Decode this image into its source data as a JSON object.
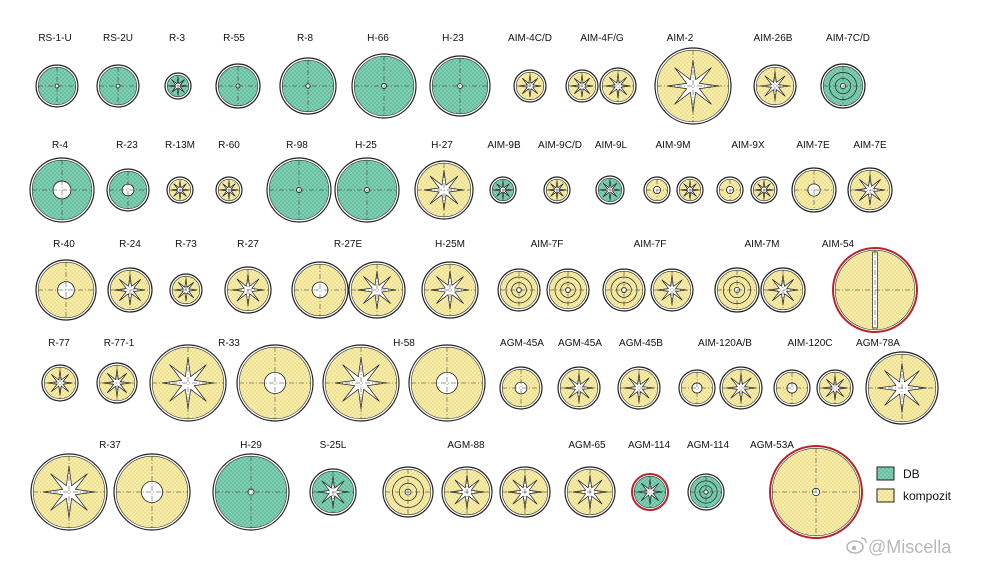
{
  "colors": {
    "db": "#7fcfb2",
    "db_dot": "#4fa98a",
    "kompozit": "#f7eca8",
    "kompozit_dot": "#d9c76a",
    "outline": "#222222",
    "case_red": "#b3262c",
    "watermark": "#b8b8b8"
  },
  "legend": {
    "db_label": "DB",
    "kompozit_label": "kompozit"
  },
  "watermark": {
    "text": "@Miscella",
    "icon": "weibo-icon"
  },
  "rows": [
    {
      "labels": [
        "RS-1-U",
        "RS-2U",
        "R-3",
        "R-55",
        "R-8",
        "H-66",
        "H-23",
        "AIM-4C/D",
        "AIM-4F/G",
        "AIM-2",
        "AIM-26B",
        "AIM-7C/D"
      ],
      "grains": [
        {
          "label": "RS-1-U",
          "material": "db",
          "core": "dot"
        },
        {
          "label": "RS-2U",
          "material": "db",
          "core": "dot"
        },
        {
          "label": "R-3",
          "material": "db",
          "core": "star"
        },
        {
          "label": "R-55",
          "material": "db",
          "core": "dot"
        },
        {
          "label": "R-8",
          "material": "db",
          "core": "dot"
        },
        {
          "label": "H-66",
          "material": "db",
          "core": "dot"
        },
        {
          "label": "H-23",
          "material": "db",
          "core": "dot"
        },
        {
          "label": "AIM-4C/D",
          "material": "kompozit",
          "core": "star"
        },
        {
          "label": "AIM-4F/G",
          "material": "kompozit",
          "core": "star"
        },
        {
          "label": "AIM-4F/G",
          "material": "kompozit",
          "core": "star"
        },
        {
          "label": "AIM-2",
          "material": "kompozit",
          "core": "star"
        },
        {
          "label": "AIM-26B",
          "material": "kompozit",
          "core": "star"
        },
        {
          "label": "AIM-7C/D",
          "material": "db",
          "core": "rings"
        }
      ]
    },
    {
      "labels": [
        "R-4",
        "R-23",
        "R-13M",
        "R-60",
        "R-98",
        "H-25",
        "H-27",
        "AIM-9B",
        "AIM-9C/D",
        "AIM-9L",
        "AIM-9M",
        "AIM-9X",
        "AIM-7E",
        "AIM-7E"
      ],
      "grains": [
        {
          "label": "R-4",
          "material": "db",
          "core": "hole"
        },
        {
          "label": "R-23",
          "material": "db",
          "core": "hole"
        },
        {
          "label": "R-13M",
          "material": "kompozit",
          "core": "star"
        },
        {
          "label": "R-60",
          "material": "kompozit",
          "core": "star"
        },
        {
          "label": "R-98",
          "material": "db",
          "core": "dot"
        },
        {
          "label": "H-25",
          "material": "db",
          "core": "dot"
        },
        {
          "label": "H-27",
          "material": "kompozit",
          "core": "star"
        },
        {
          "label": "AIM-9B",
          "material": "db",
          "core": "star"
        },
        {
          "label": "AIM-9C/D",
          "material": "kompozit",
          "core": "star"
        },
        {
          "label": "AIM-9L",
          "material": "db",
          "core": "star"
        },
        {
          "label": "AIM-9M",
          "material": "kompozit",
          "core": "hole"
        },
        {
          "label": "AIM-9M",
          "material": "kompozit",
          "core": "star"
        },
        {
          "label": "AIM-9X",
          "material": "kompozit",
          "core": "hole"
        },
        {
          "label": "AIM-9X",
          "material": "kompozit",
          "core": "star"
        },
        {
          "label": "AIM-7E",
          "material": "kompozit",
          "core": "hole"
        },
        {
          "label": "AIM-7E",
          "material": "kompozit",
          "core": "star"
        }
      ]
    },
    {
      "labels": [
        "R-40",
        "R-24",
        "R-73",
        "R-27",
        "R-27E",
        "H-25M",
        "AIM-7F",
        "AIM-7F",
        "AIM-7M",
        "AIM-54"
      ],
      "grains": [
        {
          "label": "R-40",
          "material": "kompozit",
          "core": "hole"
        },
        {
          "label": "R-24",
          "material": "kompozit",
          "core": "star"
        },
        {
          "label": "R-73",
          "material": "kompozit",
          "core": "star"
        },
        {
          "label": "R-27",
          "material": "kompozit",
          "core": "star"
        },
        {
          "label": "R-27E",
          "material": "kompozit",
          "core": "hole"
        },
        {
          "label": "R-27E",
          "material": "kompozit",
          "core": "star"
        },
        {
          "label": "H-25M",
          "material": "kompozit",
          "core": "star"
        },
        {
          "label": "AIM-7F",
          "material": "kompozit",
          "core": "rings"
        },
        {
          "label": "AIM-7F",
          "material": "kompozit",
          "core": "rings"
        },
        {
          "label": "AIM-7F",
          "material": "kompozit",
          "core": "rings"
        },
        {
          "label": "AIM-7F",
          "material": "kompozit",
          "core": "star"
        },
        {
          "label": "AIM-7M",
          "material": "kompozit",
          "core": "rings"
        },
        {
          "label": "AIM-7M",
          "material": "kompozit",
          "core": "star"
        },
        {
          "label": "AIM-54",
          "material": "kompozit",
          "core": "slot"
        }
      ]
    },
    {
      "labels": [
        "R-77",
        "R-77-1",
        "R-33",
        "H-58",
        "AGM-45A",
        "AGM-45A",
        "AGM-45B",
        "AIM-120A/B",
        "AIM-120C",
        "AGM-78A"
      ],
      "grains": [
        {
          "label": "R-77",
          "material": "kompozit",
          "core": "star"
        },
        {
          "label": "R-77-1",
          "material": "kompozit",
          "core": "star"
        },
        {
          "label": "R-33",
          "material": "kompozit",
          "core": "star"
        },
        {
          "label": "R-33",
          "material": "kompozit",
          "core": "hole"
        },
        {
          "label": "H-58",
          "material": "kompozit",
          "core": "star"
        },
        {
          "label": "H-58",
          "material": "kompozit",
          "core": "hole"
        },
        {
          "label": "AGM-45A",
          "material": "kompozit",
          "core": "hole"
        },
        {
          "label": "AGM-45A",
          "material": "kompozit",
          "core": "star"
        },
        {
          "label": "AGM-45B",
          "material": "kompozit",
          "core": "star"
        },
        {
          "label": "AIM-120A/B",
          "material": "kompozit",
          "core": "hole"
        },
        {
          "label": "AIM-120A/B",
          "material": "kompozit",
          "core": "star"
        },
        {
          "label": "AIM-120C",
          "material": "kompozit",
          "core": "hole"
        },
        {
          "label": "AIM-120C",
          "material": "kompozit",
          "core": "star"
        },
        {
          "label": "AGM-78A",
          "material": "kompozit",
          "core": "star"
        }
      ]
    },
    {
      "labels": [
        "R-37",
        "H-29",
        "S-25L",
        "AGM-88",
        "AGM-65",
        "AGM-114",
        "AGM-114",
        "AGM-53A"
      ],
      "grains": [
        {
          "label": "R-37",
          "material": "kompozit",
          "core": "star"
        },
        {
          "label": "R-37",
          "material": "kompozit",
          "core": "hole"
        },
        {
          "label": "H-29",
          "material": "db",
          "core": "dot"
        },
        {
          "label": "S-25L",
          "material": "db",
          "core": "star"
        },
        {
          "label": "AGM-88",
          "material": "kompozit",
          "core": "rings"
        },
        {
          "label": "AGM-88",
          "material": "kompozit",
          "core": "star"
        },
        {
          "label": "AGM-88",
          "material": "kompozit",
          "core": "star"
        },
        {
          "label": "AGM-65",
          "material": "kompozit",
          "core": "star"
        },
        {
          "label": "AGM-114",
          "material": "db",
          "core": "star"
        },
        {
          "label": "AGM-114",
          "material": "db",
          "core": "rings"
        },
        {
          "label": "AGM-53A",
          "material": "kompozit",
          "core": "dot"
        }
      ]
    }
  ]
}
